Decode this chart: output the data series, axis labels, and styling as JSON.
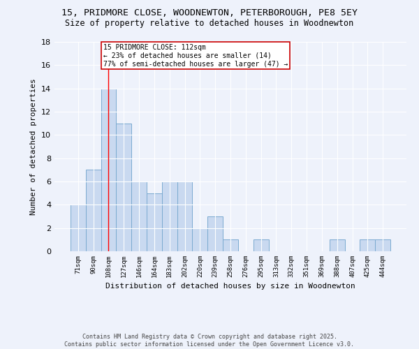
{
  "title": "15, PRIDMORE CLOSE, WOODNEWTON, PETERBOROUGH, PE8 5EY",
  "subtitle": "Size of property relative to detached houses in Woodnewton",
  "xlabel": "Distribution of detached houses by size in Woodnewton",
  "ylabel": "Number of detached properties",
  "categories": [
    "71sqm",
    "90sqm",
    "108sqm",
    "127sqm",
    "146sqm",
    "164sqm",
    "183sqm",
    "202sqm",
    "220sqm",
    "239sqm",
    "258sqm",
    "276sqm",
    "295sqm",
    "313sqm",
    "332sqm",
    "351sqm",
    "369sqm",
    "388sqm",
    "407sqm",
    "425sqm",
    "444sqm"
  ],
  "values": [
    4,
    7,
    14,
    11,
    6,
    5,
    6,
    6,
    2,
    3,
    1,
    0,
    1,
    0,
    0,
    0,
    0,
    1,
    0,
    1,
    1
  ],
  "bar_color": "#c9d9f0",
  "bar_edge_color": "#7aaad0",
  "background_color": "#eef2fb",
  "grid_color": "#ffffff",
  "red_line_index": 2,
  "annotation_text": "15 PRIDMORE CLOSE: 112sqm\n← 23% of detached houses are smaller (14)\n77% of semi-detached houses are larger (47) →",
  "annotation_box_color": "#ffffff",
  "annotation_box_edge": "#cc0000",
  "ylim": [
    0,
    18
  ],
  "yticks": [
    0,
    2,
    4,
    6,
    8,
    10,
    12,
    14,
    16,
    18
  ],
  "footer1": "Contains HM Land Registry data © Crown copyright and database right 2025.",
  "footer2": "Contains public sector information licensed under the Open Government Licence v3.0."
}
